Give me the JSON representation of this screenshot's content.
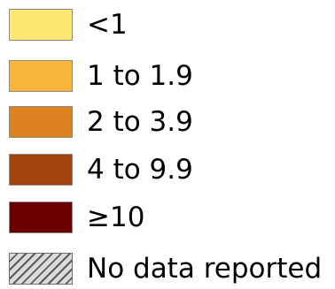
{
  "legend": {
    "items": [
      {
        "label": "<1",
        "color": "#fbe772"
      },
      {
        "label": "1 to 1.9",
        "color": "#f7b53c"
      },
      {
        "label": "2 to 3.9",
        "color": "#dd8223"
      },
      {
        "label": "4 to 9.9",
        "color": "#a3430f"
      },
      {
        "label": "≥10",
        "color": "#6b0000"
      },
      {
        "label": "No data reported",
        "color": "#dcdcdc",
        "pattern": "diagonal-hatch"
      }
    ]
  }
}
